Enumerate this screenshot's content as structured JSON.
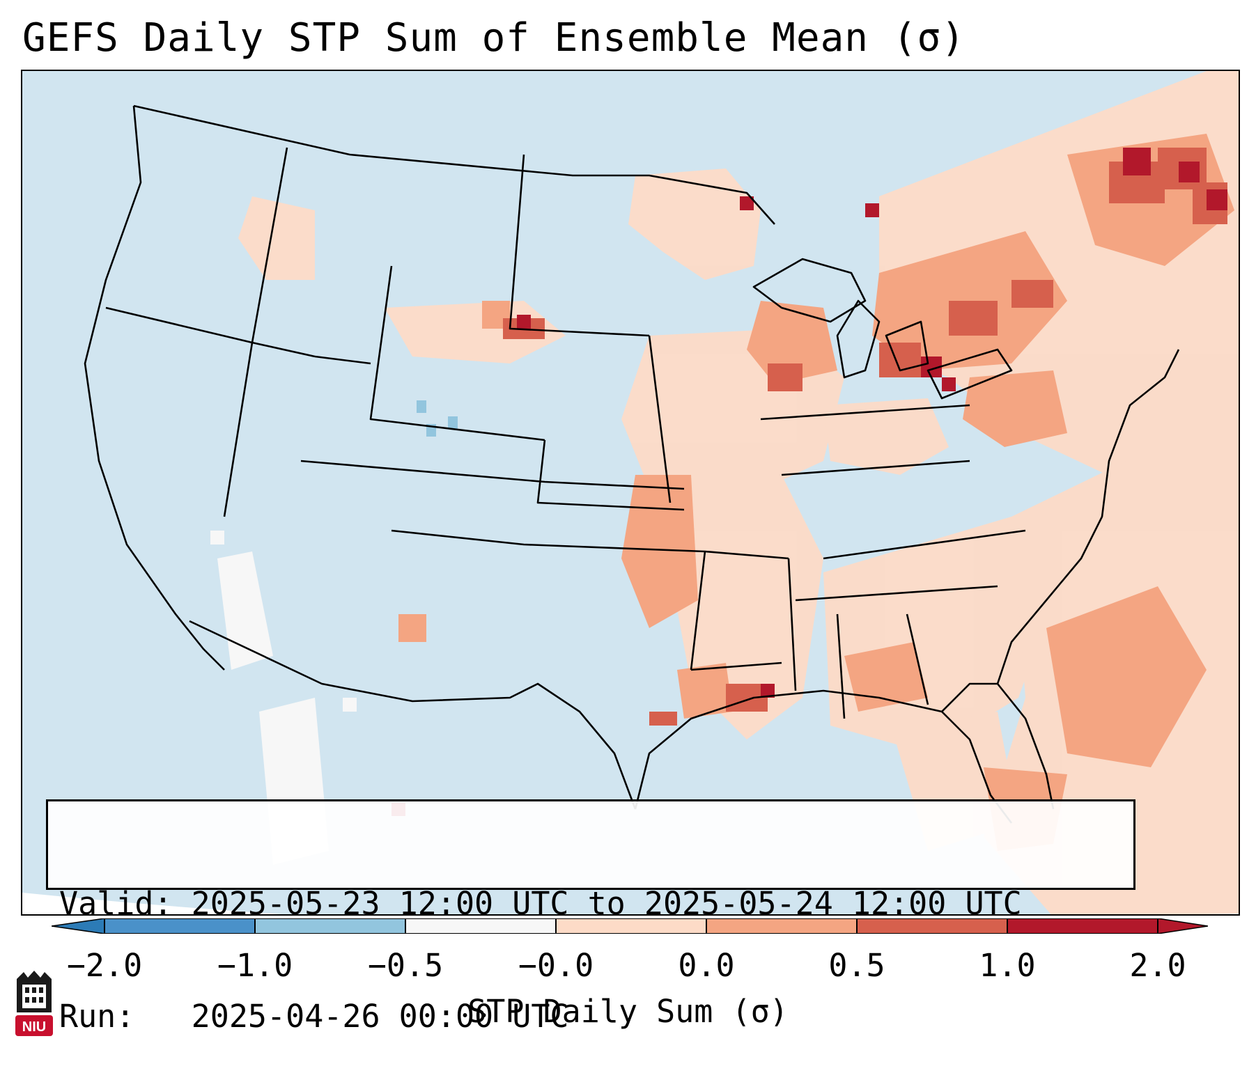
{
  "title": "GEFS Daily STP Sum of Ensemble Mean (σ)",
  "info": {
    "valid_label": "Valid:",
    "valid_value": "2025-05-23 12:00 UTC to 2025-05-24 12:00 UTC",
    "run_label": "Run:",
    "run_value": "2025-04-26 00:00 UTC"
  },
  "colorbar": {
    "label": "STP Daily Sum (σ)",
    "ticks": [
      "−2.0",
      "−1.0",
      "−0.5",
      "−0.0",
      "0.0",
      "0.5",
      "1.0",
      "2.0"
    ],
    "colors": [
      "#2c7bb6",
      "#4a91c9",
      "#92c5de",
      "#f7f7f7",
      "#fddbc7",
      "#f4a582",
      "#d6604d",
      "#b2182b"
    ],
    "extend": "both"
  },
  "map": {
    "region": "Continental United States",
    "background_ocean": "#d1e5f0",
    "field_levels": [
      {
        "range": "< -0.5",
        "color": "#92c5de"
      },
      {
        "range": "-0.5 to 0.0",
        "color": "#d1e5f0"
      },
      {
        "range": "0.0 to 0.5",
        "color": "#fddbc7"
      },
      {
        "range": "0.5 to 1.0",
        "color": "#f4a582"
      },
      {
        "range": "1.0 to 2.0",
        "color": "#d6604d"
      },
      {
        "range": "> 2.0",
        "color": "#b2182b"
      }
    ]
  },
  "logo": {
    "text": "NIU"
  }
}
